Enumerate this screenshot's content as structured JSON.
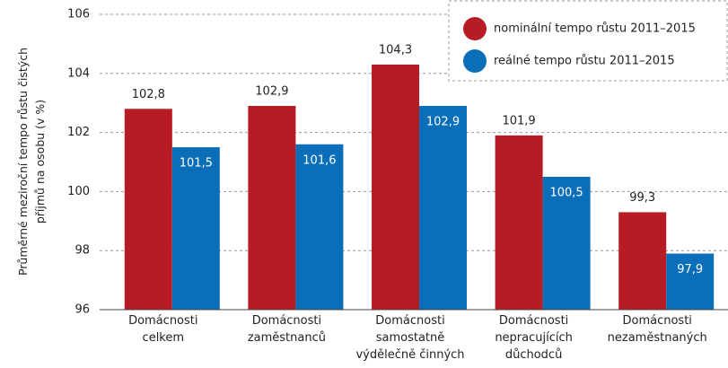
{
  "chart_data": {
    "type": "bar",
    "y_label": "Průměrné meziroční tempo růstu čistých\npříjmů na osobu (v %)",
    "categories": [
      "Domácnosti\ncelkem",
      "Domácnosti\nzaměstnanců",
      "Domácnosti\nsamostatně\nvýdělečně činných",
      "Domácnosti\nnepracujících\ndůchodců",
      "Domácnosti\nnezaměstnaných"
    ],
    "series": [
      {
        "name": "nominální tempo růstu 2011–2015",
        "color": "#b71c25",
        "values": [
          102.8,
          102.9,
          104.3,
          101.9,
          99.3
        ],
        "value_labels": [
          "102,8",
          "102,9",
          "104,3",
          "101,9",
          "99,3"
        ]
      },
      {
        "name": "reálné tempo růstu 2011–2015",
        "color": "#0a6eb8",
        "values": [
          101.5,
          101.6,
          102.9,
          100.5,
          97.9
        ],
        "value_labels": [
          "101,5",
          "101,6",
          "102,9",
          "100,5",
          "97,9"
        ]
      }
    ],
    "ylim": [
      96,
      106
    ],
    "yticks": [
      96,
      98,
      100,
      102,
      104,
      106
    ],
    "grid": true,
    "legend": "top-right"
  }
}
